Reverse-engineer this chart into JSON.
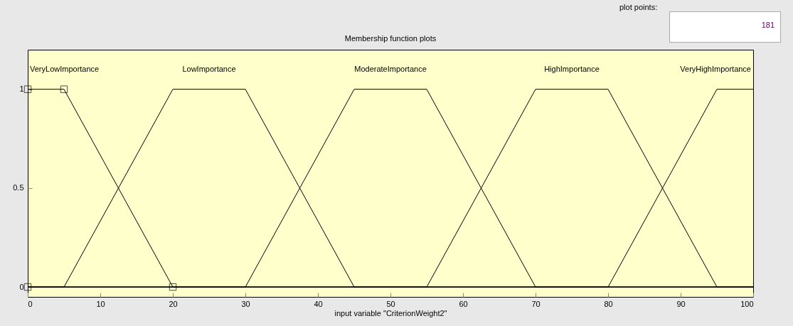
{
  "chart_data": {
    "type": "line",
    "title": "Membership function plots",
    "xlabel": "input variable \"CriterionWeight2\"",
    "xlim": [
      0,
      100
    ],
    "xticks": [
      0,
      10,
      20,
      30,
      40,
      50,
      60,
      70,
      80,
      90,
      100
    ],
    "ylim": [
      -0.05,
      1.2
    ],
    "yticks": [
      0,
      0.5,
      1
    ],
    "grid": false,
    "line_style": "solid",
    "annotations": [
      "plot points:",
      "181"
    ],
    "series": [
      {
        "name": "VeryLowImportance",
        "color": "#000000",
        "x": [
          0,
          5,
          20,
          100
        ],
        "values": [
          1,
          1,
          0,
          0
        ]
      },
      {
        "name": "LowImportance",
        "color": "#000000",
        "x": [
          0,
          5,
          20,
          30,
          45,
          100
        ],
        "values": [
          0,
          0,
          1,
          1,
          0,
          0
        ]
      },
      {
        "name": "ModerateImportance",
        "color": "#000000",
        "x": [
          0,
          30,
          45,
          55,
          70,
          100
        ],
        "values": [
          0,
          0,
          1,
          1,
          0,
          0
        ]
      },
      {
        "name": "HighImportance",
        "color": "#000000",
        "x": [
          0,
          55,
          70,
          80,
          95,
          100
        ],
        "values": [
          0,
          0,
          1,
          1,
          0,
          0
        ]
      },
      {
        "name": "VeryHighImportance",
        "color": "#000000",
        "x": [
          0,
          80,
          95,
          100
        ],
        "values": [
          0,
          0,
          1,
          1
        ]
      },
      {
        "type": "scatter",
        "marker": "square",
        "color": "#000000",
        "x": [
          0,
          0,
          5,
          20
        ],
        "values": [
          0,
          1,
          1,
          0
        ]
      }
    ]
  }
}
